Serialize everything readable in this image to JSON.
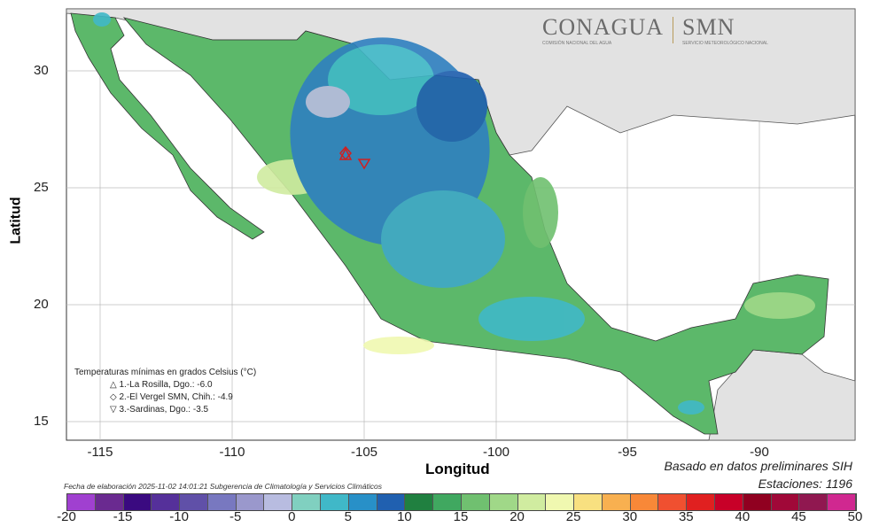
{
  "axes": {
    "ylabel": "Latitud",
    "xlabel": "Longitud",
    "yticks": [
      "30",
      "25",
      "20",
      "15"
    ],
    "xticks": [
      "-115",
      "-110",
      "-105",
      "-100",
      "-95",
      "-90"
    ]
  },
  "logos": {
    "conagua": "CONAGUA",
    "conagua_sub": "COMISIÓN NACIONAL DEL AGUA",
    "smn": "SMN",
    "smn_sub": "SERVICIO METEOROLÓGICO NACIONAL"
  },
  "legend": {
    "title": "Temperaturas mínimas en grados Celsius (°C)",
    "items": [
      {
        "symbol": "△",
        "text": "1.-La Rosilla, Dgo.: -6.0"
      },
      {
        "symbol": "◇",
        "text": "2.-El Vergel SMN, Chih.: -4.9"
      },
      {
        "symbol": "▽",
        "text": "3.-Sardinas, Dgo.: -3.5"
      }
    ]
  },
  "footer": {
    "basado": "Basado en datos preliminares SIH",
    "estaciones": "Estaciones:  1196",
    "fecha": "Fecha de elaboración 2025-11-02 14:01:21 Subgerencia de Climatología y Servicios Climáticos"
  },
  "colorbar": {
    "labels": [
      "-20",
      "-15",
      "-10",
      "-5",
      "0",
      "5",
      "10",
      "15",
      "20",
      "25",
      "30",
      "35",
      "40",
      "45",
      "50"
    ],
    "colors": [
      "#a040d0",
      "#6a2a90",
      "#3a0a80",
      "#55309a",
      "#6050a8",
      "#7878c0",
      "#9a98cc",
      "#b8bce0",
      "#80d0c0",
      "#40b8c8",
      "#2890c8",
      "#2060b0",
      "#208040",
      "#40a860",
      "#70c070",
      "#a0d888",
      "#d0eca0",
      "#f0f8b0",
      "#f8e080",
      "#f8b050",
      "#f88838",
      "#f05030",
      "#e02020",
      "#c80028",
      "#900020",
      "#a00838",
      "#901850",
      "#d02890"
    ]
  }
}
